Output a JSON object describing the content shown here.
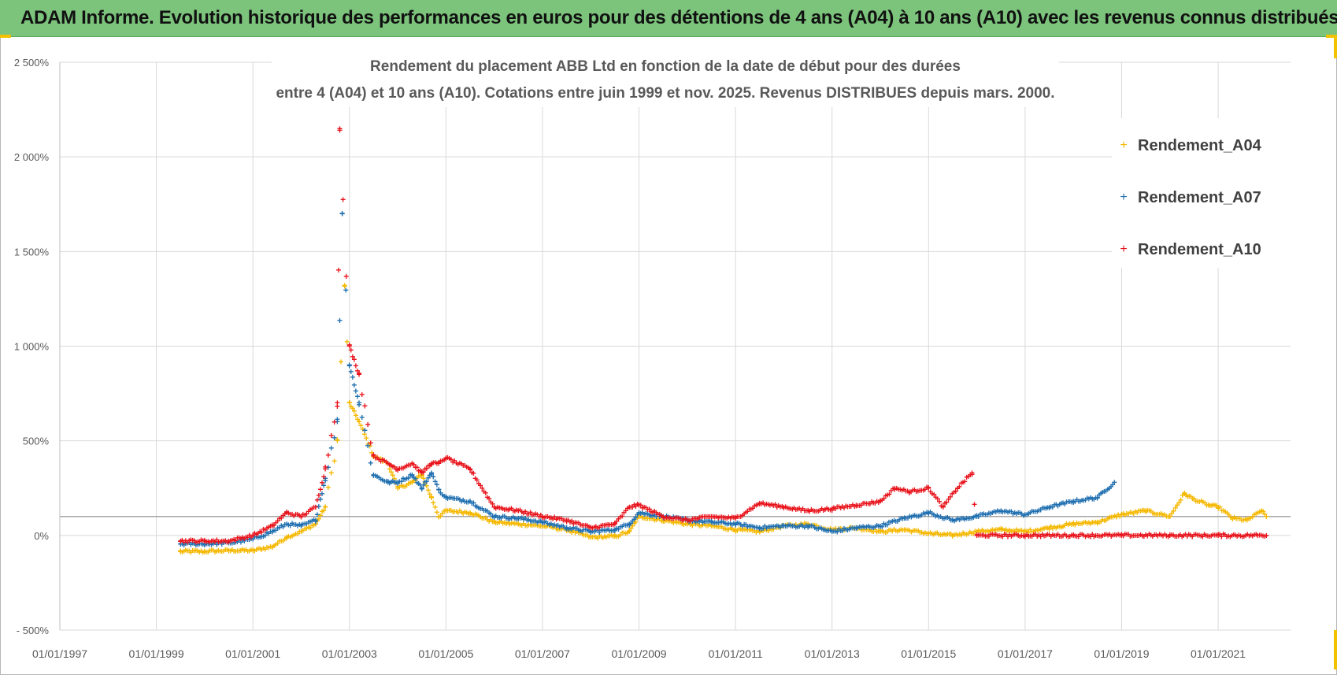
{
  "banner": {
    "title": "ADAM Informe. Evolution historique des performances en euros pour des détentions de 4 ans (A04) à 10 ans (A10) avec les revenus connus distribués"
  },
  "colors": {
    "banner": "#7cc47c",
    "accent": "#f2c200",
    "a04": "#f5b800",
    "a07": "#1f6fb0",
    "a10": "#e8131b",
    "grid": "#d9d9d9",
    "axis_text": "#595959"
  },
  "chart_data": {
    "type": "scatter",
    "title_line1": "Rendement du placement ABB Ltd en fonction de la date de début pour des durées",
    "title_line2": "entre 4 (A04) et 10 ans (A10). Cotations entre juin 1999 et nov. 2025. Revenus DISTRIBUES depuis mars. 2000.",
    "xlabel": "",
    "ylabel": "",
    "x_range": [
      1997.0,
      2022.5
    ],
    "ylim": [
      -500,
      2500
    ],
    "y_ticks": [
      -500,
      0,
      500,
      1000,
      1500,
      2000,
      2500
    ],
    "y_tick_labels": [
      "- 500%",
      "0%",
      "500%",
      "1 000%",
      "1 500%",
      "2 000%",
      "2 500%"
    ],
    "x_ticks": [
      1997,
      1999,
      2001,
      2003,
      2005,
      2007,
      2009,
      2011,
      2013,
      2015,
      2017,
      2019,
      2021
    ],
    "x_tick_labels": [
      "01/01/1997",
      "01/01/1999",
      "01/01/2001",
      "01/01/2003",
      "01/01/2005",
      "01/01/2007",
      "01/01/2009",
      "01/01/2011",
      "01/01/2013",
      "01/01/2015",
      "01/01/2017",
      "01/01/2019",
      "01/01/2021"
    ],
    "reference_line_y": 100,
    "legend_position": "right",
    "series": [
      {
        "name": "Rendement_A04",
        "color_key": "a04",
        "x": [
          1999.5,
          2000.0,
          2000.5,
          2001.0,
          2001.4,
          2001.7,
          2002.0,
          2002.3,
          2002.5,
          2002.75,
          2002.9,
          2003.0,
          2003.2,
          2003.5,
          2003.8,
          2004.0,
          2004.3,
          2004.5,
          2004.7,
          2004.85,
          2005.0,
          2005.5,
          2006.0,
          2006.5,
          2007.0,
          2007.5,
          2008.0,
          2008.5,
          2008.8,
          2009.0,
          2009.5,
          2010.0,
          2010.5,
          2011.0,
          2011.5,
          2012.0,
          2012.5,
          2013.0,
          2013.5,
          2014.0,
          2014.5,
          2015.0,
          2015.5,
          2016.0,
          2016.5,
          2017.0,
          2017.5,
          2018.0,
          2018.5,
          2019.0,
          2019.5,
          2020.0,
          2020.3,
          2020.5,
          2020.8,
          2021.0,
          2021.3,
          2021.6,
          2021.9,
          2022.0
        ],
        "y": [
          -85,
          -85,
          -80,
          -80,
          -60,
          -10,
          20,
          60,
          150,
          500,
          1320,
          700,
          600,
          420,
          380,
          250,
          280,
          320,
          200,
          100,
          130,
          120,
          70,
          60,
          50,
          30,
          -10,
          -5,
          20,
          100,
          80,
          60,
          50,
          30,
          20,
          50,
          60,
          30,
          40,
          20,
          30,
          10,
          0,
          20,
          30,
          20,
          40,
          60,
          70,
          110,
          130,
          100,
          220,
          190,
          160,
          150,
          90,
          80,
          130,
          100
        ]
      },
      {
        "name": "Rendement_A07",
        "color_key": "a07",
        "x": [
          1999.5,
          2000.0,
          2000.5,
          2001.0,
          2001.4,
          2001.7,
          2002.0,
          2002.3,
          2002.5,
          2002.75,
          2002.85,
          2003.0,
          2003.2,
          2003.5,
          2003.8,
          2004.0,
          2004.3,
          2004.5,
          2004.7,
          2004.85,
          2005.0,
          2005.5,
          2006.0,
          2006.5,
          2007.0,
          2007.5,
          2008.0,
          2008.5,
          2008.8,
          2009.0,
          2009.5,
          2010.0,
          2010.5,
          2011.0,
          2011.5,
          2012.0,
          2012.5,
          2013.0,
          2013.5,
          2014.0,
          2014.5,
          2015.0,
          2015.5,
          2016.0,
          2016.5,
          2017.0,
          2017.5,
          2018.0,
          2018.5,
          2018.85
        ],
        "y": [
          -45,
          -45,
          -40,
          -20,
          20,
          60,
          50,
          80,
          300,
          600,
          1700,
          900,
          700,
          320,
          280,
          280,
          320,
          250,
          330,
          240,
          200,
          180,
          100,
          90,
          70,
          40,
          20,
          30,
          60,
          120,
          100,
          80,
          70,
          60,
          40,
          50,
          50,
          20,
          40,
          50,
          90,
          120,
          80,
          100,
          130,
          110,
          150,
          180,
          200,
          280
        ]
      },
      {
        "name": "Rendement_A10",
        "color_key": "a10",
        "x": [
          1999.5,
          2000.0,
          2000.5,
          2001.0,
          2001.4,
          2001.7,
          2002.0,
          2002.3,
          2002.5,
          2002.75,
          2002.8,
          2003.0,
          2003.2,
          2003.5,
          2003.8,
          2004.0,
          2004.3,
          2004.5,
          2004.7,
          2004.85,
          2005.0,
          2005.5,
          2006.0,
          2006.5,
          2007.0,
          2007.5,
          2008.0,
          2008.5,
          2008.8,
          2009.0,
          2009.5,
          2010.0,
          2010.5,
          2011.0,
          2011.5,
          2012.0,
          2012.5,
          2013.0,
          2013.5,
          2014.0,
          2014.3,
          2014.6,
          2015.0,
          2015.3,
          2015.6,
          2015.9,
          2016.0,
          2017.0,
          2018.0,
          2019.0,
          2020.0,
          2021.0,
          2022.0
        ],
        "y": [
          -30,
          -30,
          -30,
          0,
          50,
          120,
          100,
          150,
          350,
          700,
          2140,
          1000,
          850,
          420,
          380,
          350,
          380,
          330,
          380,
          380,
          410,
          350,
          150,
          130,
          100,
          80,
          40,
          60,
          150,
          160,
          100,
          80,
          100,
          90,
          170,
          150,
          130,
          140,
          160,
          180,
          250,
          230,
          250,
          150,
          250,
          330,
          0,
          0,
          0,
          0,
          0,
          0,
          0
        ]
      }
    ]
  }
}
